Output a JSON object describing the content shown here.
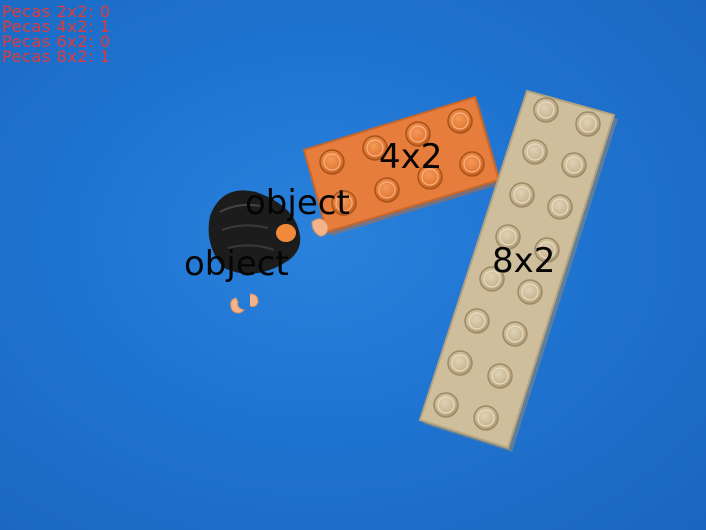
{
  "piece_counts": [
    {
      "label": "Pecas 2x2",
      "value": "0"
    },
    {
      "label": "Pecas 4x2",
      "value": "1"
    },
    {
      "label": "Pecas 6x2",
      "value": "0"
    },
    {
      "label": "Pecas 8x2",
      "value": "1"
    }
  ],
  "detections": [
    {
      "label": "4x2"
    },
    {
      "label": "8x2"
    },
    {
      "label": "object"
    },
    {
      "label": "object"
    }
  ],
  "colors": {
    "background": "#1f74d1",
    "count_text": "#e23a3a",
    "label_text": "#050505",
    "brick_orange": "#e67d3c",
    "brick_beige": "#cfbe9c",
    "figure_hair": "#1c1c1c"
  }
}
